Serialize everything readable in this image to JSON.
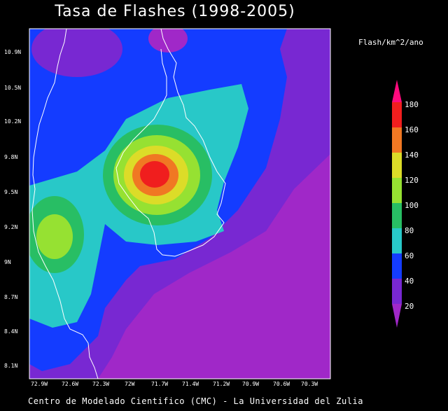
{
  "header": {
    "title": "Tasa de Flashes (1998-2005)"
  },
  "colorbar": {
    "units": "Flash/km^2/ano",
    "labels": [
      "180",
      "160",
      "140",
      "120",
      "100",
      "80",
      "60",
      "40",
      "20"
    ],
    "colors": [
      "#ff0a7d",
      "#f01e1e",
      "#f07823",
      "#dcdc28",
      "#96e132",
      "#28be64",
      "#28c8c8",
      "#143cff",
      "#7828d2",
      "#a028c8"
    ]
  },
  "axes": {
    "y_ticks": [
      "10.9N",
      "10.5N",
      "10.2N",
      "9.8N",
      "9.5N",
      "9.2N",
      "9N",
      "8.7N",
      "8.4N",
      "8.1N"
    ],
    "x_ticks": [
      "72.9W",
      "72.6W",
      "72.3W",
      "72W",
      "71.7W",
      "71.4W",
      "71.2W",
      "70.9W",
      "70.6W",
      "70.3W"
    ]
  },
  "footer": {
    "credit": "Centro de Modelado Cientifico (CMC) - La Universidad del Zulia"
  }
}
